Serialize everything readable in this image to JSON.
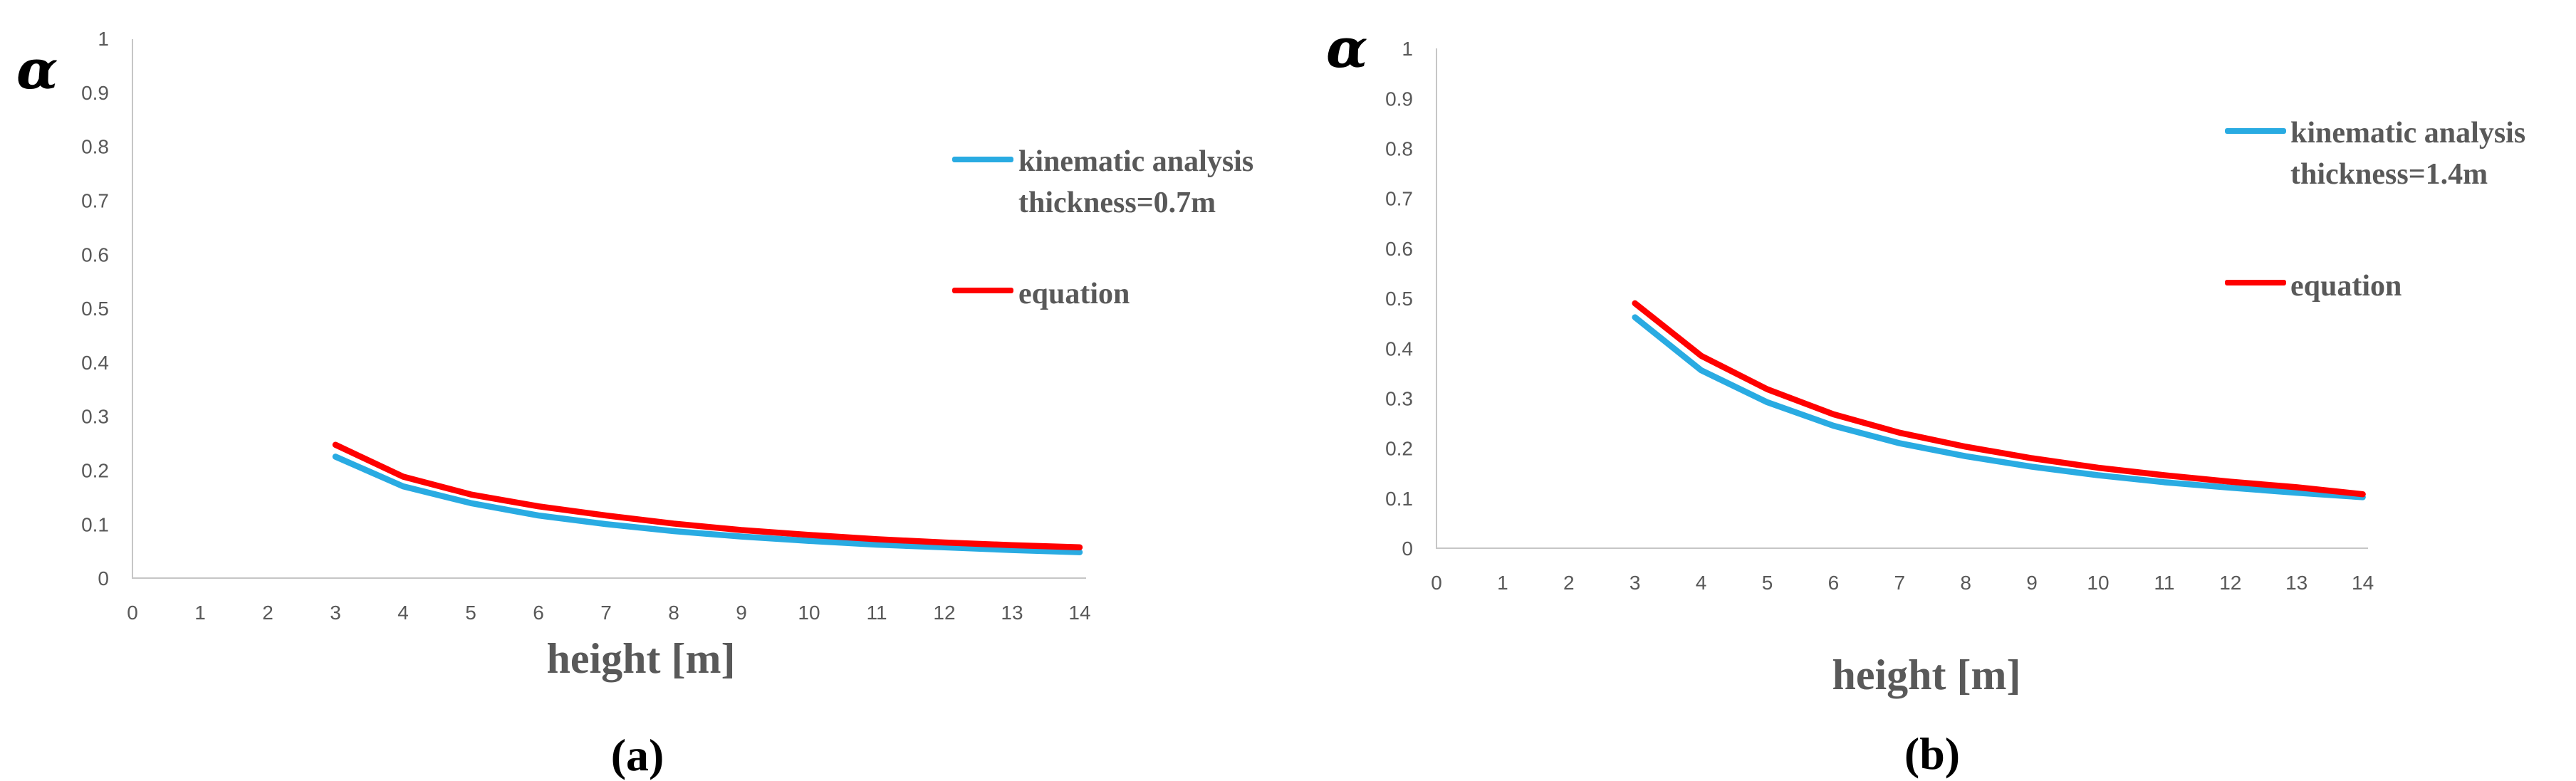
{
  "figure": {
    "background": "#ffffff"
  },
  "colors": {
    "kinematic": "#29ABE2",
    "equation": "#FF0000",
    "axis_line": "#C6C6C6",
    "tick_text": "#595959",
    "axis_title_text": "#595959",
    "caption_text": "#000000"
  },
  "chart_data": [
    {
      "id": "a",
      "type": "line",
      "caption": "(a)",
      "y_axis_label": "α",
      "x_axis_label": "height [m]",
      "xlim": [
        0,
        14
      ],
      "ylim": [
        0,
        1
      ],
      "x_tick_labels": [
        "0",
        "1",
        "2",
        "3",
        "4",
        "5",
        "6",
        "7",
        "8",
        "9",
        "10",
        "11",
        "12",
        "13",
        "14"
      ],
      "y_tick_labels": [
        "0",
        "0.1",
        "0.2",
        "0.3",
        "0.4",
        "0.5",
        "0.6",
        "0.7",
        "0.8",
        "0.9",
        "1"
      ],
      "grid": false,
      "legend_position": "right-top",
      "x": [
        3,
        4,
        5,
        6,
        7,
        8,
        9,
        10,
        11,
        12,
        13,
        14
      ],
      "series": [
        {
          "name": "kinematic analysis",
          "name_line2": "thickness=0.7m",
          "color_key": "kinematic",
          "values": [
            0.225,
            0.17,
            0.139,
            0.116,
            0.1,
            0.087,
            0.077,
            0.069,
            0.062,
            0.057,
            0.052,
            0.048
          ]
        },
        {
          "name": "equation",
          "name_line2": "",
          "color_key": "equation",
          "values": [
            0.247,
            0.188,
            0.155,
            0.133,
            0.116,
            0.101,
            0.089,
            0.08,
            0.072,
            0.066,
            0.061,
            0.057
          ]
        }
      ]
    },
    {
      "id": "b",
      "type": "line",
      "caption": "(b)",
      "y_axis_label": "α",
      "x_axis_label": "height [m]",
      "xlim": [
        0,
        14
      ],
      "ylim": [
        0,
        1
      ],
      "x_tick_labels": [
        "0",
        "1",
        "2",
        "3",
        "4",
        "5",
        "6",
        "7",
        "8",
        "9",
        "10",
        "11",
        "12",
        "13",
        "14"
      ],
      "y_tick_labels": [
        "0",
        "0.1",
        "0.2",
        "0.3",
        "0.4",
        "0.5",
        "0.6",
        "0.7",
        "0.8",
        "0.9",
        "1"
      ],
      "grid": false,
      "legend_position": "right-top",
      "x": [
        3,
        4,
        5,
        6,
        7,
        8,
        9,
        10,
        11,
        12,
        13,
        14
      ],
      "series": [
        {
          "name": "kinematic analysis",
          "name_line2": "thickness=1.4m",
          "color_key": "kinematic",
          "values": [
            0.462,
            0.356,
            0.292,
            0.245,
            0.21,
            0.184,
            0.163,
            0.146,
            0.132,
            0.121,
            0.111,
            0.102
          ]
        },
        {
          "name": "equation",
          "name_line2": "",
          "color_key": "equation",
          "values": [
            0.49,
            0.385,
            0.318,
            0.268,
            0.231,
            0.203,
            0.18,
            0.161,
            0.146,
            0.133,
            0.122,
            0.108
          ]
        }
      ]
    }
  ]
}
